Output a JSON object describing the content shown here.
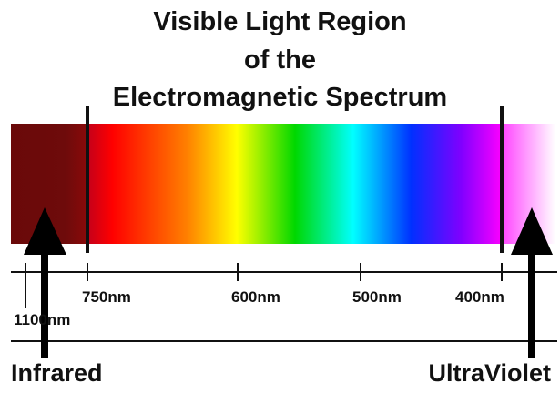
{
  "title": {
    "line1": "Visible Light Region",
    "line2": "of the",
    "line3": "Electromagnetic Spectrum"
  },
  "scale": {
    "ticks": [
      {
        "label": "750nm",
        "value": 750
      },
      {
        "label": "600nm",
        "value": 600
      },
      {
        "label": "500nm",
        "value": 500
      },
      {
        "label": "400nm",
        "value": 400
      },
      {
        "label": "1100nm",
        "value": 1100
      }
    ]
  },
  "regions": {
    "infrared": "Infrared",
    "ultraviolet": "UltraViolet"
  },
  "colors": {
    "infrared_band": "#6b0a0a",
    "spectrum": [
      "#c4001a",
      "#ff0000",
      "#ff8000",
      "#ffff00",
      "#00d800",
      "#00ffff",
      "#0030ff",
      "#8000ff",
      "#ff00ff"
    ],
    "ultraviolet_band": "#ffffff",
    "ink": "#111111"
  }
}
